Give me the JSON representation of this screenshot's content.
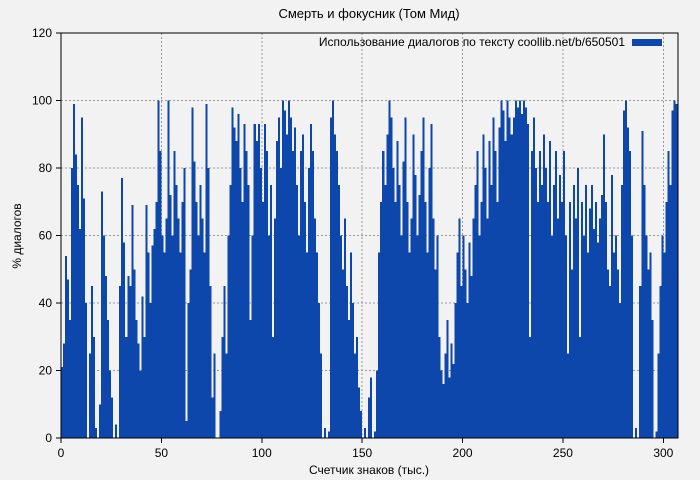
{
  "title": "Смерть и фокусник (Том Мид)",
  "legend": {
    "label": "Использование диалогов по тексту coollib.net/b/650501",
    "swatch_color": "#0d47ab"
  },
  "axes": {
    "x": {
      "label": "Счетчик знаков (тыс.)",
      "ticks": [
        0,
        50,
        100,
        150,
        200,
        250,
        300
      ]
    },
    "y": {
      "label": "% диалогов",
      "ticks": [
        0,
        20,
        40,
        60,
        80,
        100,
        120
      ]
    }
  },
  "colors": {
    "bar": "#0d47ab",
    "background": "#f2f2f2",
    "grid": "#999999",
    "border": "#000000",
    "text": "#000000"
  },
  "chart_data": {
    "type": "bar",
    "title": "Смерть и фокусник (Том Мид)",
    "series_label": "Использование диалогов по тексту coollib.net/b/650501",
    "xlabel": "Счетчик знаков (тыс.)",
    "ylabel": "% диалогов",
    "xlim": [
      0,
      307.3
    ],
    "ylim": [
      0,
      120
    ],
    "grid": true,
    "legend_position": "top-right-inside",
    "x_start": 0,
    "x_step": 1,
    "values": [
      21,
      28,
      54,
      47,
      35,
      80,
      99,
      84,
      75,
      62,
      95,
      71,
      40,
      0,
      25,
      45,
      30,
      3,
      0,
      10,
      73,
      60,
      48,
      35,
      20,
      12,
      0,
      4,
      0,
      45,
      77,
      58,
      30,
      48,
      45,
      69,
      50,
      35,
      28,
      20,
      42,
      30,
      69,
      55,
      40,
      57,
      62,
      70,
      100,
      85,
      60,
      55,
      65,
      100,
      72,
      60,
      85,
      75,
      65,
      55,
      70,
      80,
      5,
      40,
      50,
      98,
      82,
      70,
      60,
      75,
      65,
      55,
      99,
      80,
      45,
      12,
      25,
      0,
      0,
      8,
      30,
      45,
      25,
      60,
      75,
      98,
      92,
      88,
      96,
      80,
      70,
      93,
      85,
      75,
      35,
      60,
      93,
      88,
      93,
      80,
      70,
      93,
      85,
      60,
      75,
      30,
      65,
      88,
      95,
      80,
      100,
      97,
      90,
      100,
      95,
      85,
      92,
      75,
      60,
      85,
      90,
      70,
      55,
      80,
      93,
      85,
      65,
      55,
      40,
      25,
      0,
      3,
      0,
      2,
      95,
      100,
      90,
      85,
      75,
      60,
      50,
      65,
      45,
      35,
      55,
      40,
      25,
      30,
      15,
      8,
      0,
      3,
      0,
      12,
      18,
      0,
      2,
      20,
      55,
      70,
      85,
      75,
      90,
      100,
      95,
      80,
      70,
      88,
      75,
      60,
      82,
      95,
      70,
      55,
      65,
      90,
      78,
      60,
      72,
      85,
      95,
      70,
      55,
      80,
      93,
      65,
      50,
      60,
      30,
      20,
      16,
      25,
      35,
      18,
      28,
      22,
      40,
      55,
      65,
      45,
      60,
      50,
      40,
      58,
      48,
      65,
      75,
      85,
      60,
      70,
      90,
      80,
      65,
      88,
      75,
      95,
      85,
      70,
      92,
      100,
      97,
      88,
      100,
      95,
      90,
      95,
      100,
      98,
      100,
      96,
      100,
      98,
      93,
      30,
      85,
      95,
      80,
      70,
      85,
      75,
      90,
      80,
      70,
      88,
      60,
      75,
      85,
      65,
      78,
      70,
      85,
      60,
      25,
      70,
      50,
      75,
      65,
      80,
      30,
      70,
      60,
      75,
      55,
      68,
      75,
      62,
      70,
      58,
      65,
      72,
      90,
      70,
      50,
      45,
      78,
      55,
      60,
      50,
      40,
      75,
      97,
      100,
      92,
      85,
      60,
      0,
      3,
      0,
      45,
      91,
      75,
      60,
      50,
      55,
      35,
      0,
      2,
      25,
      45,
      60,
      55,
      70,
      85,
      75,
      97,
      100,
      99
    ]
  }
}
